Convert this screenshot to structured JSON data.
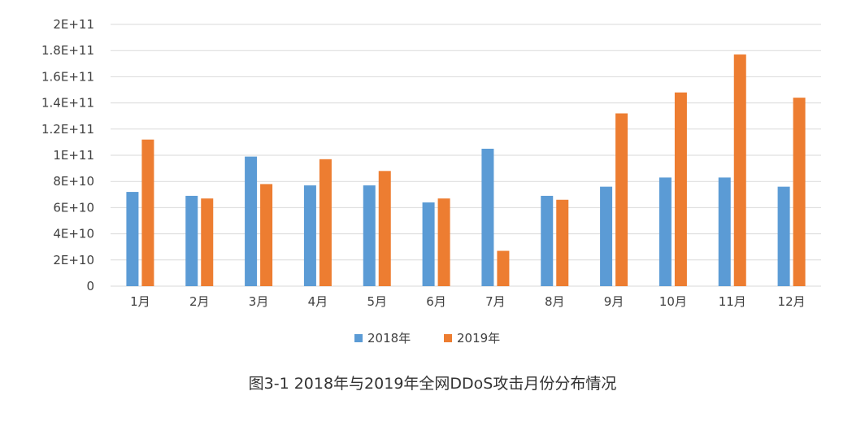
{
  "chart_data": {
    "type": "bar",
    "title": "",
    "xlabel": "",
    "ylabel": "",
    "categories": [
      "1月",
      "2月",
      "3月",
      "4月",
      "5月",
      "6月",
      "7月",
      "8月",
      "9月",
      "10月",
      "11月",
      "12月"
    ],
    "series": [
      {
        "name": "2018年",
        "color": "#5B9BD5",
        "values": [
          72000000000.0,
          69000000000.0,
          99000000000.0,
          77000000000.0,
          77000000000.0,
          64000000000.0,
          105000000000.0,
          69000000000.0,
          76000000000.0,
          83000000000.0,
          83000000000.0,
          76000000000.0
        ]
      },
      {
        "name": "2019年",
        "color": "#ED7D31",
        "values": [
          112000000000.0,
          67000000000.0,
          78000000000.0,
          97000000000.0,
          88000000000.0,
          67000000000.0,
          27000000000.0,
          66000000000.0,
          132000000000.0,
          148000000000.0,
          177000000000.0,
          144000000000.0
        ]
      }
    ],
    "ylim": [
      0,
      200000000000.0
    ],
    "yticks": [
      0,
      20000000000.0,
      40000000000.0,
      60000000000.0,
      80000000000.0,
      100000000000.0,
      120000000000.0,
      140000000000.0,
      160000000000.0,
      180000000000.0,
      200000000000.0
    ],
    "ytick_labels": [
      "0",
      "2E+10",
      "4E+10",
      "6E+10",
      "8E+10",
      "1E+11",
      "1.2E+11",
      "1.4E+11",
      "1.6E+11",
      "1.8E+11",
      "2E+11"
    ],
    "grid": true,
    "legend_position": "bottom"
  },
  "caption": "图3-1  2018年与2019年全网DDoS攻击月份分布情况"
}
